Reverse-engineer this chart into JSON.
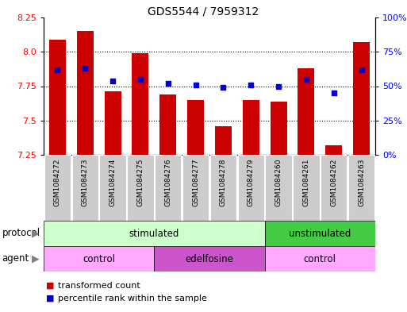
{
  "title": "GDS5544 / 7959312",
  "samples": [
    "GSM1084272",
    "GSM1084273",
    "GSM1084274",
    "GSM1084275",
    "GSM1084276",
    "GSM1084277",
    "GSM1084278",
    "GSM1084279",
    "GSM1084260",
    "GSM1084261",
    "GSM1084262",
    "GSM1084263"
  ],
  "transformed_count": [
    8.09,
    8.15,
    7.71,
    7.99,
    7.69,
    7.65,
    7.46,
    7.65,
    7.64,
    7.88,
    7.32,
    8.07
  ],
  "percentile_rank": [
    62,
    63,
    54,
    55,
    52,
    51,
    49,
    51,
    50,
    55,
    45,
    62
  ],
  "ylim_left": [
    7.25,
    8.25
  ],
  "ylim_right": [
    0,
    100
  ],
  "yticks_left": [
    7.25,
    7.5,
    7.75,
    8.0,
    8.25
  ],
  "yticks_right": [
    0,
    25,
    50,
    75,
    100
  ],
  "ytick_labels_right": [
    "0%",
    "25%",
    "50%",
    "75%",
    "100%"
  ],
  "bar_color": "#cc0000",
  "dot_color": "#0000cc",
  "bar_bottom": 7.25,
  "grid_lines": [
    7.5,
    7.75,
    8.0
  ],
  "protocol_groups": [
    {
      "label": "stimulated",
      "start": 0,
      "end": 8,
      "color": "#ccffcc"
    },
    {
      "label": "unstimulated",
      "start": 8,
      "end": 12,
      "color": "#44cc44"
    }
  ],
  "agent_groups": [
    {
      "label": "control",
      "start": 0,
      "end": 4,
      "color": "#ffaaff"
    },
    {
      "label": "edelfosine",
      "start": 4,
      "end": 8,
      "color": "#cc55cc"
    },
    {
      "label": "control",
      "start": 8,
      "end": 12,
      "color": "#ffaaff"
    }
  ],
  "sample_box_color": "#cccccc",
  "legend_items": [
    {
      "label": "transformed count",
      "color": "#cc0000"
    },
    {
      "label": "percentile rank within the sample",
      "color": "#0000cc"
    }
  ]
}
